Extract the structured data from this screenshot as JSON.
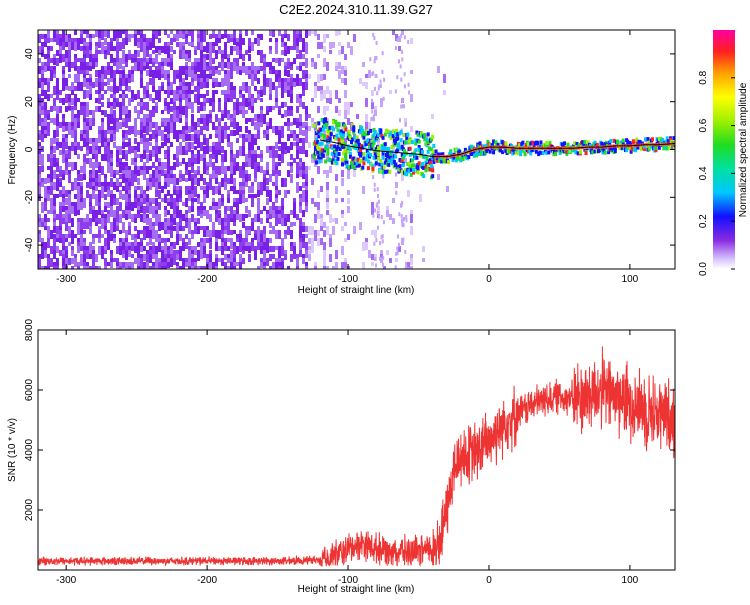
{
  "title": "C2E2.2024.310.11.39.G27",
  "chart_data": [
    {
      "type": "heatmap",
      "xlabel": "Height of straight line (km)",
      "ylabel": "Frequency (Hz)",
      "xlim": [
        -320,
        132
      ],
      "ylim": [
        -50,
        50
      ],
      "x_ticks": [
        -300,
        -200,
        -100,
        0,
        100
      ],
      "y_ticks": [
        -40,
        -20,
        0,
        20,
        40
      ],
      "colorbar": {
        "label": "Normalized spectral amplitude",
        "range": [
          0,
          1
        ],
        "ticks": [
          0.0,
          0.2,
          0.4,
          0.6,
          0.8
        ]
      },
      "trace": {
        "x": [
          -120,
          -110,
          -100,
          -90,
          -80,
          -70,
          -60,
          -50,
          -40,
          -30,
          -20,
          -10,
          0,
          10,
          20,
          30,
          40,
          50,
          60,
          70,
          80,
          90,
          100,
          110,
          120,
          132
        ],
        "y": [
          4,
          3,
          1.5,
          0.5,
          -0.5,
          -1,
          -1.5,
          -2,
          -3,
          -3,
          -2,
          0,
          1,
          1,
          0.5,
          0.5,
          0.5,
          0.5,
          0.5,
          1,
          1,
          1.5,
          1.5,
          2,
          2,
          2.5
        ]
      }
    },
    {
      "type": "line",
      "xlabel": "Height of straight line (km)",
      "ylabel": "SNR (10 * v/v)",
      "xlim": [
        -320,
        132
      ],
      "ylim": [
        0,
        8000
      ],
      "x_ticks": [
        -300,
        -200,
        -100,
        0,
        100
      ],
      "y_ticks": [
        2000,
        4000,
        6000,
        8000
      ],
      "color": "#ee3333",
      "series": [
        {
          "x": [
            -320,
            -300,
            -280,
            -260,
            -240,
            -220,
            -200,
            -180,
            -160,
            -140,
            -120,
            -110,
            -100,
            -90,
            -80,
            -70,
            -60,
            -50,
            -40,
            -35,
            -30,
            -25,
            -20,
            -15,
            -10,
            -5,
            0,
            5,
            10,
            20,
            30,
            40,
            50,
            60,
            70,
            80,
            90,
            100,
            110,
            120,
            132
          ],
          "y": [
            300,
            300,
            300,
            300,
            300,
            300,
            300,
            300,
            300,
            300,
            350,
            450,
            700,
            900,
            700,
            700,
            600,
            600,
            700,
            900,
            2000,
            3300,
            3800,
            3800,
            3900,
            4100,
            4300,
            4600,
            4900,
            5200,
            5500,
            5700,
            5800,
            5700,
            5800,
            6000,
            5800,
            5600,
            5400,
            5200,
            5100
          ]
        }
      ]
    }
  ]
}
